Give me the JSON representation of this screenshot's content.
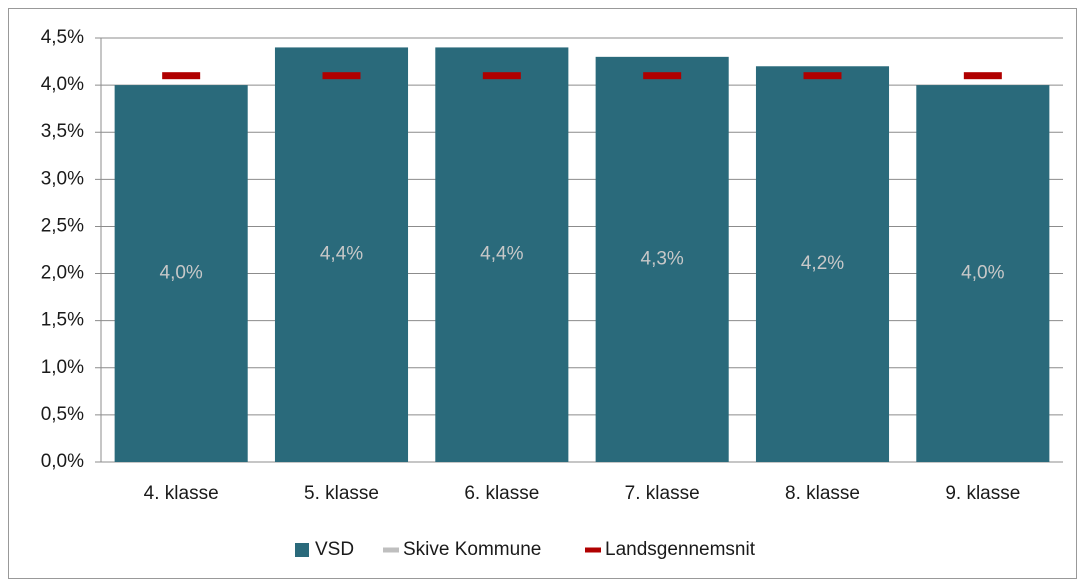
{
  "chart_data": {
    "type": "bar",
    "categories": [
      "4. klasse",
      "5. klasse",
      "6. klasse",
      "7. klasse",
      "8. klasse",
      "9. klasse"
    ],
    "series": [
      {
        "name": "VSD",
        "type": "bar",
        "color": "#2a6a7b",
        "values": [
          4.0,
          4.4,
          4.4,
          4.3,
          4.2,
          4.0
        ],
        "value_labels": [
          "4,0%",
          "4,4%",
          "4,4%",
          "4,3%",
          "4,2%",
          "4,0%"
        ]
      },
      {
        "name": "Skive Kommune",
        "type": "marker",
        "color": "#bfbfbf",
        "values": [
          null,
          null,
          null,
          null,
          null,
          null
        ]
      },
      {
        "name": "Landsgennemsnit",
        "type": "marker",
        "color": "#b00000",
        "values": [
          4.1,
          4.1,
          4.1,
          4.1,
          4.1,
          4.1
        ]
      }
    ],
    "ylim": [
      0,
      4.5
    ],
    "yticks": [
      {
        "value": 0,
        "label": "0,0%"
      },
      {
        "value": 0.5,
        "label": "0,5%"
      },
      {
        "value": 1.0,
        "label": "1,0%"
      },
      {
        "value": 1.5,
        "label": "1,5%"
      },
      {
        "value": 2.0,
        "label": "2,0%"
      },
      {
        "value": 2.5,
        "label": "2,5%"
      },
      {
        "value": 3.0,
        "label": "3,0%"
      },
      {
        "value": 3.5,
        "label": "3,5%"
      },
      {
        "value": 4.0,
        "label": "4,0%"
      },
      {
        "value": 4.5,
        "label": "4,5%"
      }
    ],
    "grid": true,
    "legend": "bottom"
  }
}
